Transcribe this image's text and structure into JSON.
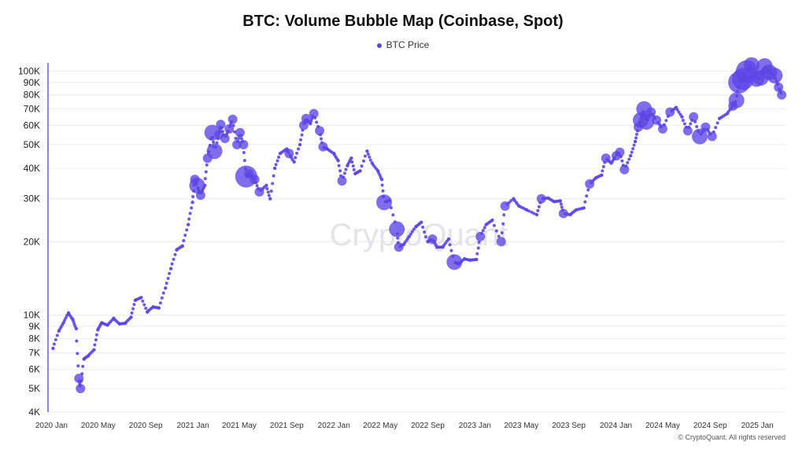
{
  "chart_data": {
    "type": "scatter",
    "title": "BTC: Volume Bubble Map (Coinbase, Spot)",
    "legend": [
      "BTC Price"
    ],
    "legend_position": "top-center",
    "y_scale": "log",
    "ylim": [
      4000,
      105000
    ],
    "y_ticks": [
      {
        "value": 4000,
        "label": "4K"
      },
      {
        "value": 5000,
        "label": "5K"
      },
      {
        "value": 6000,
        "label": "6K"
      },
      {
        "value": 7000,
        "label": "7K"
      },
      {
        "value": 8000,
        "label": "8K"
      },
      {
        "value": 9000,
        "label": "9K"
      },
      {
        "value": 10000,
        "label": "10K"
      },
      {
        "value": 20000,
        "label": "20K"
      },
      {
        "value": 30000,
        "label": "30K"
      },
      {
        "value": 40000,
        "label": "40K"
      },
      {
        "value": 50000,
        "label": "50K"
      },
      {
        "value": 60000,
        "label": "60K"
      },
      {
        "value": 70000,
        "label": "70K"
      },
      {
        "value": 80000,
        "label": "80K"
      },
      {
        "value": 90000,
        "label": "90K"
      },
      {
        "value": 100000,
        "label": "100K"
      }
    ],
    "xlim": [
      "2019-12-25",
      "2025-03-15"
    ],
    "x_ticks": [
      {
        "date": "2020-01-01",
        "label": "2020 Jan"
      },
      {
        "date": "2020-05-01",
        "label": "2020 May"
      },
      {
        "date": "2020-09-01",
        "label": "2020 Sep"
      },
      {
        "date": "2021-01-01",
        "label": "2021 Jan"
      },
      {
        "date": "2021-05-01",
        "label": "2021 May"
      },
      {
        "date": "2021-09-01",
        "label": "2021 Sep"
      },
      {
        "date": "2022-01-01",
        "label": "2022 Jan"
      },
      {
        "date": "2022-05-01",
        "label": "2022 May"
      },
      {
        "date": "2022-09-01",
        "label": "2022 Sep"
      },
      {
        "date": "2023-01-01",
        "label": "2023 Jan"
      },
      {
        "date": "2023-05-01",
        "label": "2023 May"
      },
      {
        "date": "2023-09-01",
        "label": "2023 Sep"
      },
      {
        "date": "2024-01-01",
        "label": "2024 Jan"
      },
      {
        "date": "2024-05-01",
        "label": "2024 May"
      },
      {
        "date": "2024-09-01",
        "label": "2024 Sep"
      },
      {
        "date": "2025-01-01",
        "label": "2025 Jan"
      }
    ],
    "grid": true,
    "series": [
      {
        "name": "BTC Price",
        "color": "#5b45e6",
        "points": [
          [
            "2020-01-05",
            7300,
            1
          ],
          [
            "2020-01-20",
            8600,
            1
          ],
          [
            "2020-02-01",
            9300,
            1
          ],
          [
            "2020-02-14",
            10200,
            1
          ],
          [
            "2020-02-25",
            9600,
            1
          ],
          [
            "2020-03-05",
            8800,
            1
          ],
          [
            "2020-03-12",
            5500,
            2
          ],
          [
            "2020-03-16",
            5000,
            2
          ],
          [
            "2020-03-25",
            6600,
            1
          ],
          [
            "2020-04-05",
            6800,
            1
          ],
          [
            "2020-04-20",
            7200,
            1
          ],
          [
            "2020-04-30",
            8700,
            1
          ],
          [
            "2020-05-10",
            9300,
            1
          ],
          [
            "2020-05-25",
            9100,
            1
          ],
          [
            "2020-06-10",
            9700,
            1
          ],
          [
            "2020-06-25",
            9200,
            1
          ],
          [
            "2020-07-10",
            9250,
            1
          ],
          [
            "2020-07-25",
            9800,
            1
          ],
          [
            "2020-08-05",
            11500,
            1
          ],
          [
            "2020-08-20",
            11800,
            1
          ],
          [
            "2020-09-05",
            10300,
            1
          ],
          [
            "2020-09-20",
            10800,
            1
          ],
          [
            "2020-10-05",
            10700,
            1
          ],
          [
            "2020-10-22",
            12900,
            1
          ],
          [
            "2020-11-05",
            15500,
            1
          ],
          [
            "2020-11-20",
            18500,
            1
          ],
          [
            "2020-12-05",
            19200,
            1
          ],
          [
            "2020-12-20",
            23500,
            1
          ],
          [
            "2020-12-31",
            29000,
            1
          ],
          [
            "2021-01-06",
            36000,
            2
          ],
          [
            "2021-01-12",
            34000,
            3
          ],
          [
            "2021-01-21",
            31000,
            2
          ],
          [
            "2021-02-01",
            34000,
            1
          ],
          [
            "2021-02-08",
            44000,
            2
          ],
          [
            "2021-02-20",
            56000,
            3
          ],
          [
            "2021-02-26",
            47000,
            3
          ],
          [
            "2021-03-10",
            55000,
            2
          ],
          [
            "2021-03-14",
            60500,
            2
          ],
          [
            "2021-03-25",
            53000,
            2
          ],
          [
            "2021-04-05",
            58000,
            2
          ],
          [
            "2021-04-14",
            63500,
            2
          ],
          [
            "2021-04-25",
            50000,
            2
          ],
          [
            "2021-05-03",
            56000,
            2
          ],
          [
            "2021-05-12",
            50000,
            2
          ],
          [
            "2021-05-19",
            37000,
            4
          ],
          [
            "2021-05-26",
            38000,
            2
          ],
          [
            "2021-06-10",
            36000,
            2
          ],
          [
            "2021-06-22",
            32000,
            2
          ],
          [
            "2021-07-10",
            34000,
            1
          ],
          [
            "2021-07-20",
            30000,
            1
          ],
          [
            "2021-08-01",
            40000,
            1
          ],
          [
            "2021-08-15",
            46000,
            1
          ],
          [
            "2021-09-01",
            48000,
            1
          ],
          [
            "2021-09-07",
            46000,
            2
          ],
          [
            "2021-09-20",
            42500,
            1
          ],
          [
            "2021-10-05",
            50000,
            1
          ],
          [
            "2021-10-15",
            60000,
            2
          ],
          [
            "2021-10-21",
            64000,
            2
          ],
          [
            "2021-11-01",
            61000,
            1
          ],
          [
            "2021-11-10",
            67000,
            2
          ],
          [
            "2021-11-25",
            57000,
            2
          ],
          [
            "2021-12-04",
            49000,
            2
          ],
          [
            "2021-12-15",
            48000,
            1
          ],
          [
            "2022-01-01",
            46000,
            1
          ],
          [
            "2022-01-12",
            43000,
            1
          ],
          [
            "2022-01-22",
            35500,
            2
          ],
          [
            "2022-02-05",
            41000,
            1
          ],
          [
            "2022-02-15",
            44000,
            1
          ],
          [
            "2022-02-25",
            38000,
            1
          ],
          [
            "2022-03-10",
            39000,
            1
          ],
          [
            "2022-03-28",
            47000,
            1
          ],
          [
            "2022-04-10",
            42000,
            1
          ],
          [
            "2022-04-25",
            39000,
            1
          ],
          [
            "2022-05-05",
            36000,
            1
          ],
          [
            "2022-05-11",
            29000,
            3
          ],
          [
            "2022-05-25",
            29500,
            1
          ],
          [
            "2022-06-13",
            22500,
            3
          ],
          [
            "2022-06-18",
            19000,
            2
          ],
          [
            "2022-07-01",
            19500,
            1
          ],
          [
            "2022-07-15",
            21000,
            1
          ],
          [
            "2022-08-01",
            23000,
            1
          ],
          [
            "2022-08-15",
            24000,
            1
          ],
          [
            "2022-09-01",
            20000,
            1
          ],
          [
            "2022-09-13",
            20500,
            2
          ],
          [
            "2022-09-25",
            19000,
            1
          ],
          [
            "2022-10-10",
            19000,
            1
          ],
          [
            "2022-10-25",
            20500,
            1
          ],
          [
            "2022-11-09",
            16500,
            3
          ],
          [
            "2022-11-20",
            16200,
            1
          ],
          [
            "2022-12-05",
            17000,
            1
          ],
          [
            "2022-12-20",
            16800,
            1
          ],
          [
            "2023-01-05",
            16900,
            1
          ],
          [
            "2023-01-15",
            21000,
            2
          ],
          [
            "2023-01-30",
            23500,
            1
          ],
          [
            "2023-02-15",
            24500,
            1
          ],
          [
            "2023-03-10",
            20000,
            2
          ],
          [
            "2023-03-20",
            28000,
            2
          ],
          [
            "2023-04-11",
            30000,
            1
          ],
          [
            "2023-04-25",
            28000,
            1
          ],
          [
            "2023-05-15",
            27000,
            1
          ],
          [
            "2023-06-10",
            25800,
            1
          ],
          [
            "2023-06-22",
            30000,
            2
          ],
          [
            "2023-07-10",
            30200,
            1
          ],
          [
            "2023-07-25",
            29200,
            1
          ],
          [
            "2023-08-10",
            29400,
            1
          ],
          [
            "2023-08-18",
            26100,
            2
          ],
          [
            "2023-09-05",
            25800,
            1
          ],
          [
            "2023-09-20",
            27000,
            1
          ],
          [
            "2023-10-10",
            27500,
            1
          ],
          [
            "2023-10-25",
            34500,
            2
          ],
          [
            "2023-11-10",
            36500,
            1
          ],
          [
            "2023-11-25",
            37500,
            1
          ],
          [
            "2023-12-06",
            44000,
            2
          ],
          [
            "2023-12-20",
            42000,
            1
          ],
          [
            "2024-01-02",
            45000,
            2
          ],
          [
            "2024-01-11",
            46500,
            2
          ],
          [
            "2024-01-23",
            39500,
            2
          ],
          [
            "2024-02-08",
            45000,
            1
          ],
          [
            "2024-02-20",
            51500,
            1
          ],
          [
            "2024-02-28",
            59000,
            2
          ],
          [
            "2024-03-05",
            63000,
            3
          ],
          [
            "2024-03-14",
            70000,
            3
          ],
          [
            "2024-03-20",
            62000,
            3
          ],
          [
            "2024-04-01",
            68000,
            2
          ],
          [
            "2024-04-15",
            63000,
            2
          ],
          [
            "2024-05-01",
            58000,
            2
          ],
          [
            "2024-05-20",
            68000,
            2
          ],
          [
            "2024-06-05",
            71000,
            1
          ],
          [
            "2024-06-20",
            65000,
            1
          ],
          [
            "2024-07-05",
            57000,
            2
          ],
          [
            "2024-07-20",
            65000,
            2
          ],
          [
            "2024-08-05",
            54000,
            3
          ],
          [
            "2024-08-20",
            59000,
            2
          ],
          [
            "2024-09-06",
            54000,
            2
          ],
          [
            "2024-09-25",
            64000,
            1
          ],
          [
            "2024-10-15",
            67000,
            1
          ],
          [
            "2024-10-30",
            72000,
            2
          ],
          [
            "2024-11-08",
            76000,
            3
          ],
          [
            "2024-11-15",
            90000,
            4
          ],
          [
            "2024-11-25",
            93000,
            4
          ],
          [
            "2024-12-05",
            100000,
            4
          ],
          [
            "2024-12-17",
            106000,
            3
          ],
          [
            "2024-12-30",
            93000,
            3
          ],
          [
            "2025-01-10",
            94000,
            3
          ],
          [
            "2025-01-20",
            105000,
            3
          ],
          [
            "2025-02-01",
            99000,
            3
          ],
          [
            "2025-02-15",
            96000,
            3
          ],
          [
            "2025-02-25",
            86000,
            2
          ],
          [
            "2025-03-05",
            80000,
            2
          ]
        ]
      }
    ],
    "watermark": "CryptoQuant",
    "credit": "© CryptoQuant. All rights reserved"
  }
}
